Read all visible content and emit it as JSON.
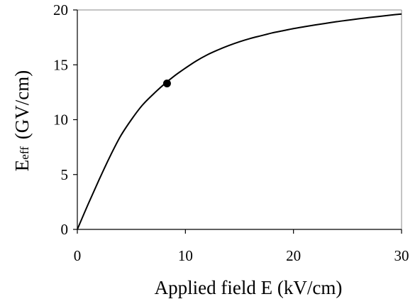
{
  "chart_data": {
    "type": "line",
    "title": "",
    "xlabel": "Applied field E (kV/cm)",
    "ylabel_main": "E",
    "ylabel_sub": "eff",
    "ylabel_unit": "(GV/cm)",
    "xlim": [
      0,
      30
    ],
    "ylim": [
      0,
      20
    ],
    "xticks": [
      0,
      10,
      20,
      30
    ],
    "yticks": [
      0,
      5,
      10,
      15,
      20
    ],
    "xtick_labels": [
      "0",
      "10",
      "20",
      "30"
    ],
    "ytick_labels": [
      "0",
      "5",
      "10",
      "15",
      "20"
    ],
    "grid": false,
    "legend": "none",
    "series": [
      {
        "color": "#000000",
        "x": [
          0,
          1,
          2,
          3,
          4,
          5,
          6,
          7,
          8,
          9,
          10,
          11,
          12,
          13,
          14,
          15,
          16,
          17,
          18,
          19,
          20,
          21,
          22,
          23,
          24,
          25,
          26,
          27,
          28,
          29,
          30
        ],
        "y": [
          0,
          2.3,
          4.5,
          6.6,
          8.5,
          10.0,
          11.3,
          12.3,
          13.2,
          14.0,
          14.7,
          15.35,
          15.9,
          16.35,
          16.75,
          17.1,
          17.4,
          17.65,
          17.9,
          18.1,
          18.3,
          18.47,
          18.63,
          18.78,
          18.93,
          19.06,
          19.19,
          19.31,
          19.42,
          19.53,
          19.63
        ]
      }
    ],
    "marker_points": [
      {
        "x": 8.3,
        "y": 13.3,
        "color": "#000000"
      }
    ]
  }
}
